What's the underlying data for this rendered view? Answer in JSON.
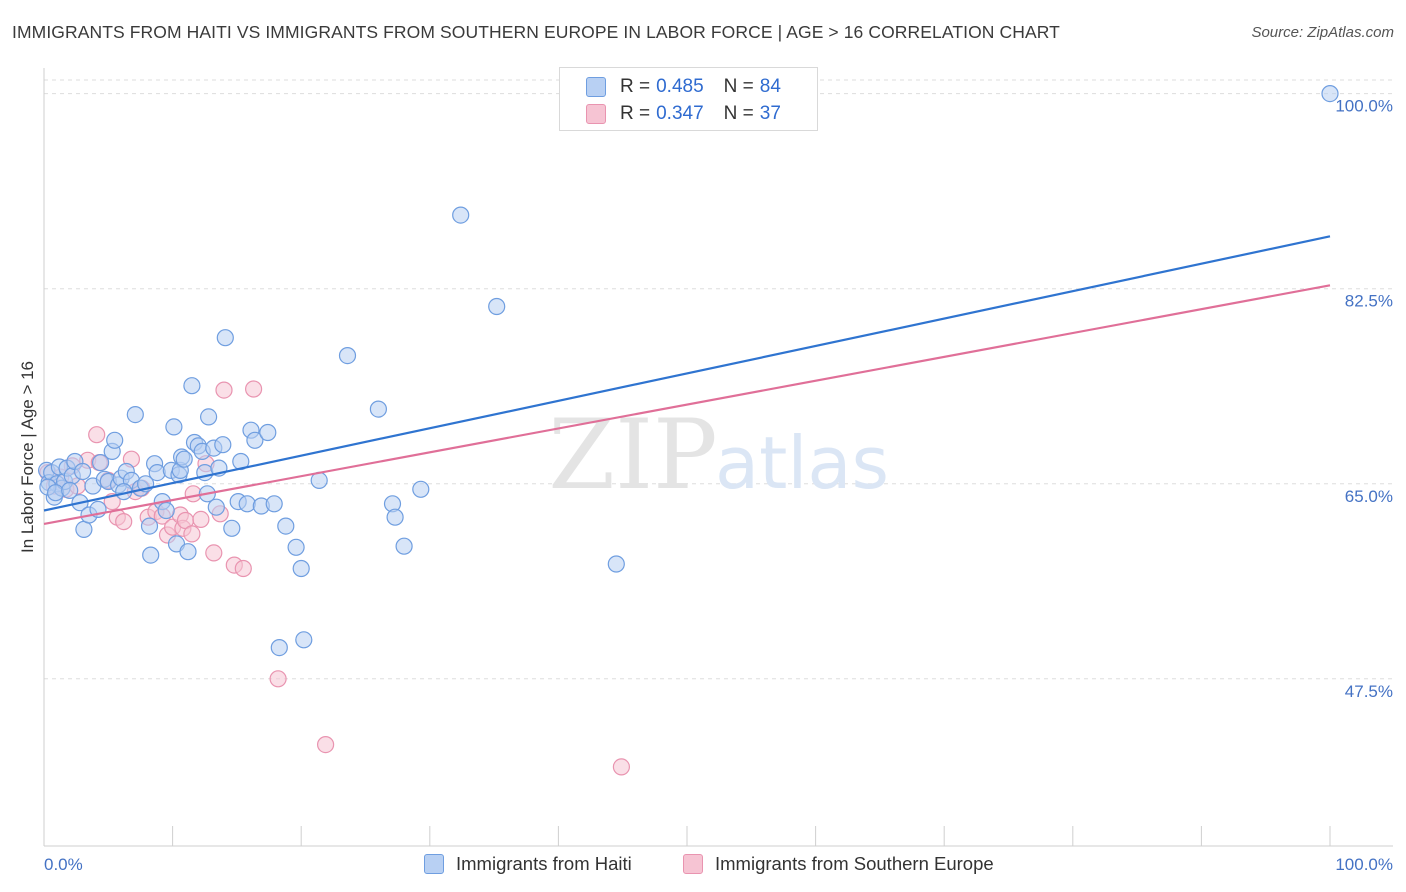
{
  "header": {
    "title": "IMMIGRANTS FROM HAITI VS IMMIGRANTS FROM SOUTHERN EUROPE IN LABOR FORCE | AGE > 16 CORRELATION CHART",
    "source": "Source: ZipAtlas.com"
  },
  "watermark": {
    "zip": "ZIP",
    "atlas": "atlas"
  },
  "legend": {
    "r_label": "R =",
    "n_label": "N =",
    "series": [
      {
        "r": "0.485",
        "n": "84"
      },
      {
        "r": "0.347",
        "n": "37"
      }
    ]
  },
  "bottom_legend": {
    "items": [
      "Immigrants from Haiti",
      "Immigrants from Southern Europe"
    ]
  },
  "colors": {
    "haiti_fill": "#b8d0f3",
    "haiti_stroke": "#6f9ee0",
    "haiti_line": "#2f74d0",
    "seu_fill": "#f6c4d3",
    "seu_stroke": "#e994b0",
    "seu_line": "#e06f98",
    "tick_label": "#4472c4",
    "grid": "#dddddd"
  },
  "chart_data": {
    "type": "scatter",
    "title": "IMMIGRANTS FROM HAITI VS IMMIGRANTS FROM SOUTHERN EUROPE IN LABOR FORCE | AGE > 16 CORRELATION CHART",
    "xlabel": "",
    "ylabel": "In Labor Force | Age > 16",
    "xlim": [
      0,
      100
    ],
    "ylim": [
      32.5,
      102.3
    ],
    "x_tick_labels": [
      "0.0%",
      "100.0%"
    ],
    "y_ticks": [
      47.5,
      65.0,
      82.5,
      100.0
    ],
    "y_tick_labels": [
      "47.5%",
      "65.0%",
      "82.5%",
      "100.0%"
    ],
    "grid": true,
    "legend_position": "top-center",
    "series": [
      {
        "name": "Immigrants from Haiti",
        "r": 0.485,
        "n": 84,
        "trend": {
          "x": [
            0,
            100
          ],
          "y": [
            62.6,
            87.2
          ]
        },
        "points": [
          [
            0.2,
            66.2
          ],
          [
            0.4,
            65.1
          ],
          [
            0.6,
            66.0
          ],
          [
            0.8,
            63.8
          ],
          [
            1.0,
            65.0
          ],
          [
            1.2,
            66.5
          ],
          [
            1.4,
            64.6
          ],
          [
            1.6,
            65.2
          ],
          [
            1.8,
            66.4
          ],
          [
            2.2,
            65.7
          ],
          [
            2.4,
            67.0
          ],
          [
            2.8,
            63.3
          ],
          [
            3.1,
            60.9
          ],
          [
            3.5,
            62.2
          ],
          [
            3.8,
            64.8
          ],
          [
            4.2,
            62.7
          ],
          [
            4.4,
            66.9
          ],
          [
            4.7,
            65.4
          ],
          [
            5.0,
            65.2
          ],
          [
            5.3,
            67.9
          ],
          [
            5.5,
            68.9
          ],
          [
            5.8,
            64.9
          ],
          [
            6.0,
            65.5
          ],
          [
            6.4,
            66.1
          ],
          [
            6.8,
            65.3
          ],
          [
            7.1,
            71.2
          ],
          [
            7.5,
            64.6
          ],
          [
            7.9,
            65.0
          ],
          [
            8.2,
            61.2
          ],
          [
            8.3,
            58.6
          ],
          [
            8.6,
            66.8
          ],
          [
            8.8,
            66.0
          ],
          [
            9.2,
            63.4
          ],
          [
            9.5,
            62.6
          ],
          [
            9.9,
            66.2
          ],
          [
            10.1,
            70.1
          ],
          [
            10.3,
            59.6
          ],
          [
            10.5,
            65.8
          ],
          [
            10.6,
            66.2
          ],
          [
            10.7,
            67.4
          ],
          [
            10.9,
            67.2
          ],
          [
            11.2,
            58.9
          ],
          [
            11.5,
            73.8
          ],
          [
            11.7,
            68.7
          ],
          [
            12.0,
            68.4
          ],
          [
            12.3,
            67.9
          ],
          [
            12.5,
            66.0
          ],
          [
            12.7,
            64.1
          ],
          [
            12.8,
            71.0
          ],
          [
            13.2,
            68.2
          ],
          [
            13.4,
            62.9
          ],
          [
            13.6,
            66.4
          ],
          [
            13.9,
            68.5
          ],
          [
            14.1,
            78.1
          ],
          [
            14.6,
            61.0
          ],
          [
            15.1,
            63.4
          ],
          [
            15.3,
            67.0
          ],
          [
            15.8,
            63.2
          ],
          [
            16.1,
            69.8
          ],
          [
            16.4,
            68.9
          ],
          [
            16.9,
            63.0
          ],
          [
            17.4,
            69.6
          ],
          [
            17.9,
            63.2
          ],
          [
            18.3,
            50.3
          ],
          [
            18.8,
            61.2
          ],
          [
            19.6,
            59.3
          ],
          [
            20.0,
            57.4
          ],
          [
            20.2,
            51.0
          ],
          [
            21.4,
            65.3
          ],
          [
            23.6,
            76.5
          ],
          [
            26.0,
            71.7
          ],
          [
            27.1,
            63.2
          ],
          [
            27.3,
            62.0
          ],
          [
            28.0,
            59.4
          ],
          [
            29.3,
            64.5
          ],
          [
            32.4,
            89.1
          ],
          [
            35.2,
            80.9
          ],
          [
            44.5,
            57.8
          ],
          [
            100.0,
            100.0
          ],
          [
            0.3,
            64.7
          ],
          [
            0.9,
            64.2
          ],
          [
            2.0,
            64.4
          ],
          [
            6.2,
            64.3
          ],
          [
            3.0,
            66.1
          ]
        ]
      },
      {
        "name": "Immigrants from Southern Europe",
        "r": 0.347,
        "n": 37,
        "trend": {
          "x": [
            0,
            100
          ],
          "y": [
            61.4,
            82.8
          ]
        },
        "points": [
          [
            0.3,
            66.0
          ],
          [
            0.8,
            64.8
          ],
          [
            1.3,
            65.6
          ],
          [
            1.7,
            64.5
          ],
          [
            2.2,
            66.6
          ],
          [
            2.6,
            64.8
          ],
          [
            3.4,
            67.1
          ],
          [
            4.1,
            69.4
          ],
          [
            4.3,
            66.9
          ],
          [
            5.0,
            65.3
          ],
          [
            5.3,
            63.4
          ],
          [
            5.7,
            62.0
          ],
          [
            6.2,
            61.6
          ],
          [
            6.8,
            67.2
          ],
          [
            7.1,
            64.3
          ],
          [
            7.6,
            64.6
          ],
          [
            8.1,
            62.0
          ],
          [
            8.7,
            62.5
          ],
          [
            9.2,
            62.1
          ],
          [
            9.6,
            60.4
          ],
          [
            10.0,
            61.1
          ],
          [
            10.6,
            62.2
          ],
          [
            10.8,
            61.0
          ],
          [
            11.0,
            61.7
          ],
          [
            11.5,
            60.5
          ],
          [
            11.6,
            64.1
          ],
          [
            12.2,
            61.8
          ],
          [
            12.6,
            66.8
          ],
          [
            13.2,
            58.8
          ],
          [
            13.7,
            62.3
          ],
          [
            14.0,
            73.4
          ],
          [
            14.8,
            57.7
          ],
          [
            15.5,
            57.4
          ],
          [
            16.3,
            73.5
          ],
          [
            18.2,
            47.5
          ],
          [
            21.9,
            41.6
          ],
          [
            44.9,
            39.6
          ]
        ]
      }
    ]
  }
}
